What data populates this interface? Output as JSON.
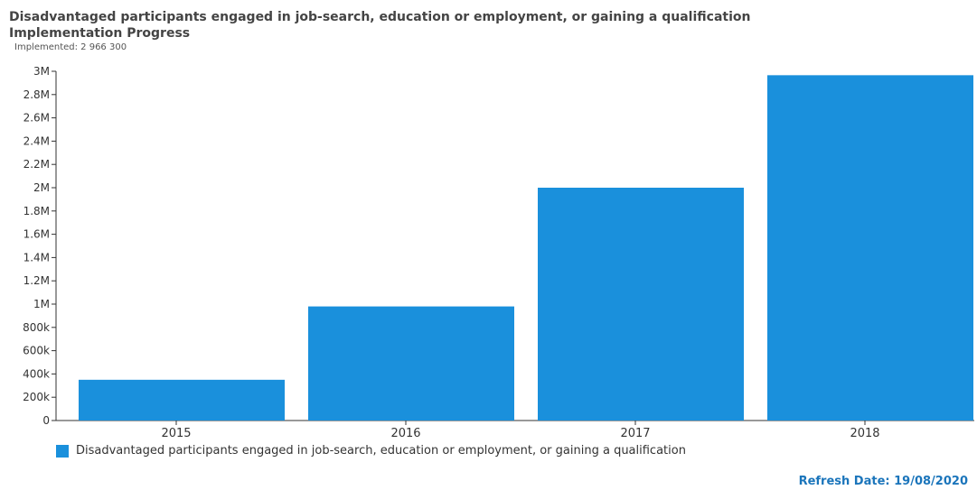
{
  "header": {
    "title": "Disadvantaged participants engaged in job-search, education or employment, or gaining a qualification",
    "subtitle": "Implementation Progress",
    "implemented": "Implemented: 2 966 300"
  },
  "footer": {
    "refresh": "Refresh Date: 19/08/2020"
  },
  "chart_data": {
    "type": "bar",
    "categories": [
      "2015",
      "2016",
      "2017",
      "2018"
    ],
    "series": [
      {
        "name": "Disadvantaged participants engaged in job-search, education or employment, or gaining a qualification",
        "values": [
          350000,
          980000,
          2000000,
          2966300
        ],
        "color": "#1a90dc"
      }
    ],
    "ylim": [
      0,
      3000000
    ],
    "yticks": [
      0,
      200000,
      400000,
      600000,
      800000,
      1000000,
      1200000,
      1400000,
      1600000,
      1800000,
      2000000,
      2200000,
      2400000,
      2600000,
      2800000,
      3000000
    ],
    "ytick_labels": [
      "0",
      "200k",
      "400k",
      "600k",
      "800k",
      "1M",
      "1.2M",
      "1.4M",
      "1.6M",
      "1.8M",
      "2M",
      "2.2M",
      "2.4M",
      "2.6M",
      "2.8M",
      "3M"
    ],
    "xlabel": "",
    "ylabel": "",
    "grid": false,
    "legend_position": "bottom-left"
  }
}
